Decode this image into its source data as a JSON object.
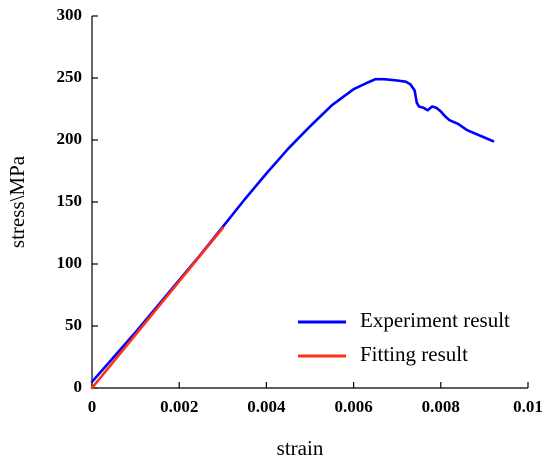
{
  "chart_data": {
    "type": "line",
    "title": "",
    "xlabel": "strain",
    "ylabel": "stress\\MPa",
    "xlim": [
      0,
      0.01
    ],
    "ylim": [
      0,
      300
    ],
    "x_ticks": [
      0,
      0.002,
      0.004,
      0.006,
      0.008,
      0.01
    ],
    "x_tick_labels": [
      "0",
      "0.002",
      "0.004",
      "0.006",
      "0.008",
      "0.01"
    ],
    "y_ticks": [
      0,
      50,
      100,
      150,
      200,
      250,
      300
    ],
    "y_tick_labels": [
      "0",
      "50",
      "100",
      "150",
      "200",
      "250",
      "300"
    ],
    "grid": false,
    "legend_position": "bottom-right",
    "series": [
      {
        "name": "Experiment result",
        "color": "#0000ff",
        "x": [
          0,
          0.0005,
          0.001,
          0.0015,
          0.002,
          0.0025,
          0.003,
          0.0035,
          0.004,
          0.0045,
          0.005,
          0.0055,
          0.006,
          0.0063,
          0.0065,
          0.0067,
          0.007,
          0.0072,
          0.0073,
          0.0074,
          0.00745,
          0.0075,
          0.0076,
          0.0077,
          0.0078,
          0.0079,
          0.008,
          0.0081,
          0.0082,
          0.0084,
          0.0086,
          0.0088,
          0.009,
          0.0092
        ],
        "y": [
          5,
          25,
          45,
          66,
          87,
          108,
          130,
          152,
          173,
          193,
          211,
          228,
          241,
          246,
          249,
          249,
          248,
          247,
          245,
          240,
          230,
          227,
          226,
          224,
          227,
          226,
          223,
          219,
          216,
          213,
          208,
          205,
          202,
          199
        ]
      },
      {
        "name": "Fitting result",
        "color": "#ff3311",
        "x": [
          0,
          0.003
        ],
        "y": [
          0,
          129
        ]
      }
    ]
  }
}
